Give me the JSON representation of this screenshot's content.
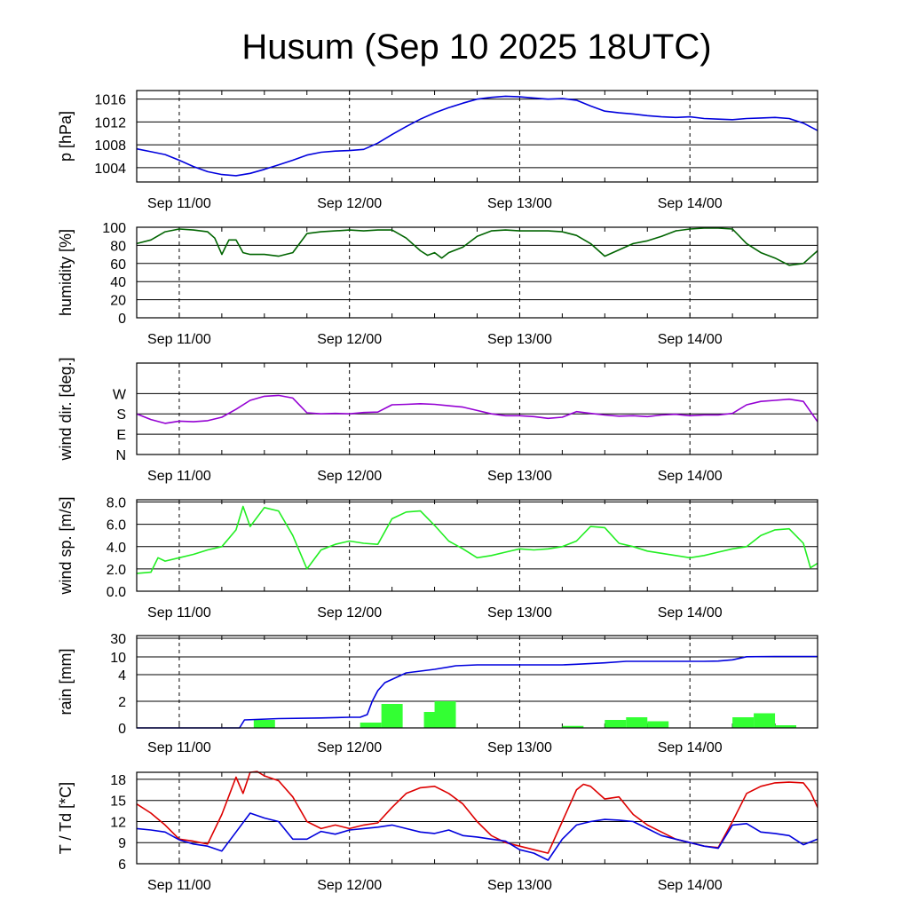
{
  "title": "Husum (Sep 10 2025 18UTC)",
  "colors": {
    "pressure": "#0000dd",
    "humidity": "#006400",
    "wind_dir": "#9400d3",
    "wind_speed": "#22ee22",
    "rain_total": "#0000dd",
    "rain_bar": "#33ff33",
    "temperature": "#dd0000",
    "dewpoint": "#0000dd"
  },
  "chart_data": [
    {
      "type": "line",
      "id": "pressure",
      "ylabel": "p [hPa]",
      "xlim": [
        0,
        96
      ],
      "ylim": [
        1001.5,
        1017.5
      ],
      "yticks": [
        1004,
        1008,
        1012,
        1016
      ],
      "ytick_labels": [
        "1004",
        "1008",
        "1012",
        "1016"
      ],
      "x_tick_labels": [
        "Sep 11/00",
        "Sep 12/00",
        "Sep 13/00",
        "Sep 14/00"
      ],
      "x_tick_hours": [
        6,
        30,
        54,
        78
      ],
      "series": [
        {
          "x": [
            0,
            2,
            4,
            6,
            8,
            10,
            12,
            14,
            16,
            18,
            20,
            22,
            24,
            26,
            28,
            30,
            32,
            34,
            36,
            38,
            40,
            42,
            44,
            46,
            48,
            50,
            52,
            54,
            56,
            58,
            60,
            62,
            64,
            66,
            68,
            70,
            72,
            74,
            76,
            78,
            80,
            82,
            84,
            86,
            88,
            90,
            92,
            94,
            96
          ],
          "values": [
            1007.3,
            1006.8,
            1006.3,
            1005.3,
            1004.2,
            1003.3,
            1002.8,
            1002.6,
            1003.0,
            1003.7,
            1004.5,
            1005.3,
            1006.2,
            1006.7,
            1006.9,
            1007.0,
            1007.2,
            1008.3,
            1009.8,
            1011.2,
            1012.5,
            1013.6,
            1014.5,
            1015.3,
            1016.0,
            1016.3,
            1016.5,
            1016.4,
            1016.2,
            1016.0,
            1016.1,
            1015.8,
            1014.8,
            1013.9,
            1013.6,
            1013.4,
            1013.1,
            1012.9,
            1012.8,
            1012.9,
            1012.6,
            1012.5,
            1012.4,
            1012.6,
            1012.7,
            1012.8,
            1012.6,
            1011.8,
            1010.5
          ]
        }
      ]
    },
    {
      "type": "line",
      "id": "humidity",
      "ylabel": "humidity [%]",
      "xlim": [
        0,
        96
      ],
      "ylim": [
        0,
        100
      ],
      "yticks": [
        0,
        20,
        40,
        60,
        80,
        100
      ],
      "ytick_labels": [
        "0",
        "20",
        "40",
        "60",
        "80",
        "100"
      ],
      "x_tick_labels": [
        "Sep 11/00",
        "Sep 12/00",
        "Sep 13/00",
        "Sep 14/00"
      ],
      "x_tick_hours": [
        6,
        30,
        54,
        78
      ],
      "series": [
        {
          "x": [
            0,
            2,
            4,
            6,
            8,
            10,
            11,
            12,
            13,
            14,
            15,
            16,
            18,
            20,
            22,
            24,
            26,
            28,
            30,
            32,
            34,
            36,
            38,
            40,
            41,
            42,
            43,
            44,
            46,
            48,
            50,
            52,
            54,
            56,
            58,
            60,
            62,
            64,
            66,
            68,
            70,
            72,
            74,
            76,
            78,
            80,
            82,
            84,
            86,
            88,
            90,
            92,
            94,
            96
          ],
          "values": [
            82,
            86,
            95,
            98,
            97,
            95,
            88,
            70,
            86,
            86,
            72,
            70,
            70,
            68,
            72,
            93,
            95,
            96,
            97,
            96,
            97,
            97,
            88,
            74,
            69,
            72,
            66,
            72,
            78,
            90,
            96,
            97,
            96,
            96,
            96,
            95,
            91,
            82,
            68,
            75,
            82,
            85,
            90,
            96,
            98,
            99,
            99,
            98,
            82,
            72,
            66,
            58,
            60,
            74
          ]
        }
      ]
    },
    {
      "type": "line",
      "id": "wind_dir",
      "ylabel": "wind dir. [deg.]",
      "xlim": [
        0,
        96
      ],
      "ylim": [
        0,
        405
      ],
      "yticks": [
        0,
        90,
        180,
        270
      ],
      "ytick_labels": [
        "N",
        "E",
        "S",
        "W"
      ],
      "x_tick_labels": [
        "Sep 11/00",
        "Sep 12/00",
        "Sep 13/00",
        "Sep 14/00"
      ],
      "x_tick_hours": [
        6,
        30,
        54,
        78
      ],
      "series": [
        {
          "x": [
            0,
            2,
            4,
            6,
            8,
            10,
            12,
            14,
            16,
            18,
            20,
            22,
            24,
            26,
            28,
            30,
            32,
            34,
            36,
            38,
            40,
            42,
            44,
            46,
            48,
            50,
            52,
            54,
            56,
            58,
            60,
            62,
            64,
            66,
            68,
            70,
            72,
            74,
            76,
            78,
            80,
            82,
            84,
            86,
            88,
            90,
            92,
            94,
            96
          ],
          "values": [
            180,
            155,
            138,
            148,
            145,
            150,
            165,
            200,
            240,
            258,
            262,
            250,
            185,
            180,
            182,
            180,
            186,
            188,
            220,
            222,
            225,
            222,
            216,
            210,
            195,
            180,
            172,
            172,
            168,
            160,
            165,
            190,
            182,
            175,
            170,
            172,
            168,
            175,
            178,
            172,
            175,
            175,
            182,
            220,
            235,
            240,
            245,
            235,
            145
          ]
        }
      ]
    },
    {
      "type": "line",
      "id": "wind_speed",
      "ylabel": "wind sp. [m/s]",
      "xlim": [
        0,
        96
      ],
      "ylim": [
        0,
        8.2
      ],
      "yticks": [
        0,
        2,
        4,
        6,
        8
      ],
      "ytick_labels": [
        "0.0",
        "2.0",
        "4.0",
        "6.0",
        "8.0"
      ],
      "x_tick_labels": [
        "Sep 11/00",
        "Sep 12/00",
        "Sep 13/00",
        "Sep 14/00"
      ],
      "x_tick_hours": [
        6,
        30,
        54,
        78
      ],
      "series": [
        {
          "x": [
            0,
            2,
            3,
            4,
            6,
            8,
            10,
            12,
            14,
            15,
            16,
            18,
            20,
            22,
            24,
            26,
            28,
            30,
            32,
            34,
            36,
            38,
            40,
            42,
            44,
            46,
            48,
            50,
            52,
            54,
            56,
            58,
            60,
            62,
            64,
            66,
            68,
            70,
            72,
            74,
            76,
            78,
            80,
            82,
            84,
            86,
            88,
            90,
            92,
            94,
            95,
            96
          ],
          "values": [
            1.6,
            1.7,
            3.0,
            2.7,
            3.0,
            3.3,
            3.7,
            4.0,
            5.5,
            7.6,
            5.8,
            7.5,
            7.2,
            5.0,
            2.0,
            3.7,
            4.2,
            4.5,
            4.3,
            4.2,
            6.5,
            7.1,
            7.2,
            5.9,
            4.5,
            3.8,
            3.0,
            3.2,
            3.5,
            3.8,
            3.7,
            3.8,
            4.0,
            4.5,
            5.8,
            5.7,
            4.3,
            4.0,
            3.6,
            3.4,
            3.2,
            3.0,
            3.2,
            3.5,
            3.8,
            4.0,
            5.0,
            5.5,
            5.6,
            4.3,
            2.1,
            2.5
          ]
        }
      ]
    },
    {
      "type": "bar",
      "id": "rain",
      "ylabel": "rain [mm]",
      "xlim": [
        0,
        96
      ],
      "yticks": [
        0,
        2,
        4,
        10,
        30
      ],
      "ytick_labels": [
        "0",
        "2",
        "4",
        "10",
        "30"
      ],
      "x_tick_labels": [
        "Sep 11/00",
        "Sep 12/00",
        "Sep 13/00",
        "Sep 14/00"
      ],
      "x_tick_hours": [
        6,
        30,
        54,
        78
      ],
      "bars": {
        "x_start": [
          16.5,
          31.5,
          34.5,
          40.5,
          42.0,
          60.0,
          66.0,
          69.0,
          72.0,
          84.0,
          87.0,
          90.0
        ],
        "x_end": [
          19.5,
          34.5,
          37.5,
          43.5,
          45.0,
          63.0,
          69.0,
          72.0,
          75.0,
          87.0,
          90.0,
          93.0
        ],
        "values": [
          0.6,
          0.4,
          1.8,
          1.2,
          2.0,
          0.15,
          0.6,
          0.8,
          0.5,
          0.8,
          1.1,
          0.2
        ]
      },
      "series": [
        {
          "x": [
            0,
            14.5,
            15.2,
            20,
            26,
            30,
            31.5,
            32.5,
            33.2,
            34,
            35,
            38,
            42,
            45,
            48,
            52,
            56,
            60,
            62,
            66,
            69,
            72,
            76,
            78,
            80,
            82,
            84,
            86,
            90,
            96
          ],
          "values": [
            0,
            0,
            0.6,
            0.7,
            0.75,
            0.8,
            0.8,
            1.0,
            2.0,
            2.8,
            3.4,
            4.6,
            5.8,
            7.0,
            7.3,
            7.3,
            7.3,
            7.3,
            7.5,
            8.0,
            8.5,
            8.5,
            8.5,
            8.5,
            8.5,
            8.6,
            9.0,
            10.2,
            10.5,
            10.5
          ]
        }
      ]
    },
    {
      "type": "line",
      "id": "temperature",
      "ylabel": "T / Td [*C]",
      "xlim": [
        0,
        96
      ],
      "ylim": [
        6,
        19
      ],
      "yticks": [
        6,
        9,
        12,
        15,
        18
      ],
      "ytick_labels": [
        "6",
        "9",
        "12",
        "15",
        "18"
      ],
      "x_tick_labels": [
        "Sep 11/00",
        "Sep 12/00",
        "Sep 13/00",
        "Sep 14/00"
      ],
      "x_tick_hours": [
        6,
        30,
        54,
        78
      ],
      "series": [
        {
          "x": [
            0,
            2,
            4,
            6,
            8,
            10,
            12,
            14,
            15,
            16,
            17,
            18,
            20,
            22,
            24,
            26,
            28,
            30,
            32,
            34,
            36,
            38,
            40,
            42,
            44,
            46,
            48,
            50,
            52,
            54,
            56,
            58,
            60,
            62,
            63,
            64,
            66,
            68,
            70,
            72,
            74,
            76,
            78,
            80,
            82,
            84,
            86,
            88,
            90,
            92,
            94,
            95,
            96
          ],
          "values": [
            14.5,
            13.2,
            11.5,
            9.5,
            9.2,
            8.8,
            13.0,
            18.3,
            16.0,
            19.0,
            19.1,
            18.5,
            17.8,
            15.5,
            12.0,
            11.0,
            11.5,
            11.0,
            11.5,
            11.8,
            14.0,
            16.0,
            16.8,
            17.0,
            16.0,
            14.5,
            12.0,
            10.0,
            9.0,
            8.5,
            8.0,
            7.5,
            12.0,
            16.5,
            17.3,
            17.0,
            15.2,
            15.5,
            13.0,
            11.5,
            10.5,
            9.5,
            9.0,
            8.5,
            8.3,
            12.0,
            16.0,
            17.0,
            17.5,
            17.6,
            17.5,
            16.2,
            14.0
          ]
        },
        {
          "x": [
            0,
            2,
            4,
            6,
            8,
            10,
            12,
            14,
            16,
            18,
            20,
            22,
            24,
            26,
            28,
            30,
            32,
            34,
            36,
            38,
            40,
            42,
            44,
            46,
            48,
            50,
            52,
            54,
            56,
            58,
            60,
            62,
            64,
            66,
            68,
            70,
            72,
            74,
            76,
            78,
            80,
            82,
            84,
            86,
            88,
            90,
            92,
            94,
            96
          ],
          "values": [
            11.0,
            10.8,
            10.5,
            9.4,
            8.8,
            8.5,
            7.8,
            10.5,
            13.2,
            12.5,
            12.0,
            9.5,
            9.5,
            10.6,
            10.2,
            10.8,
            11.0,
            11.2,
            11.5,
            11.0,
            10.5,
            10.3,
            10.8,
            10.0,
            9.8,
            9.5,
            9.2,
            8.0,
            7.5,
            6.5,
            9.5,
            11.5,
            12.0,
            12.3,
            12.2,
            12.0,
            11.0,
            10.0,
            9.5,
            9.0,
            8.5,
            8.2,
            11.5,
            11.7,
            10.5,
            10.3,
            10.0,
            8.7,
            9.5
          ]
        }
      ]
    }
  ]
}
